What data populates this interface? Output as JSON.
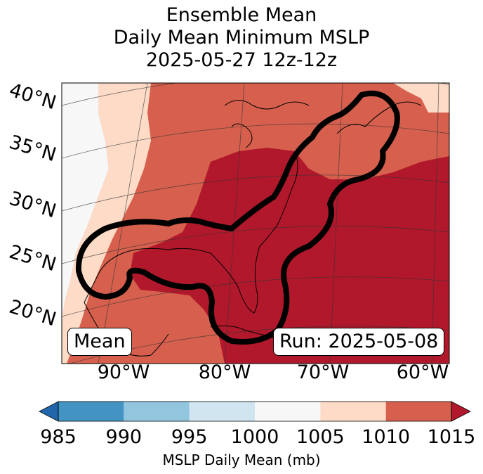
{
  "title": {
    "line1": "Ensemble Mean",
    "line2": "Daily Mean Minimum MSLP",
    "line3": "2025-05-27 12z-12z"
  },
  "map": {
    "lat_labels": [
      "40°N",
      "35°N",
      "30°N",
      "25°N",
      "20°N"
    ],
    "lon_labels": [
      "90°W",
      "80°W",
      "70°W",
      "60°W"
    ],
    "mean_badge": "Mean",
    "run_badge": "Run: 2025-05-08"
  },
  "colorbar": {
    "label": "MSLP Daily Mean (mb)",
    "ticks": [
      "985",
      "990",
      "995",
      "1000",
      "1005",
      "1010",
      "1015"
    ],
    "colors": [
      "#2166ac",
      "#4393c3",
      "#92c5de",
      "#d1e5f0",
      "#f7f7f7",
      "#fddbc7",
      "#d6604d",
      "#b2182b"
    ],
    "extend": "both"
  },
  "colors": {
    "band_1005_1010": "#fddbc7",
    "band_1010_1015": "#d6604d",
    "band_above_1015": "#b2182b",
    "band_1000_1005": "#f7f7f7",
    "contour": "#000000"
  }
}
